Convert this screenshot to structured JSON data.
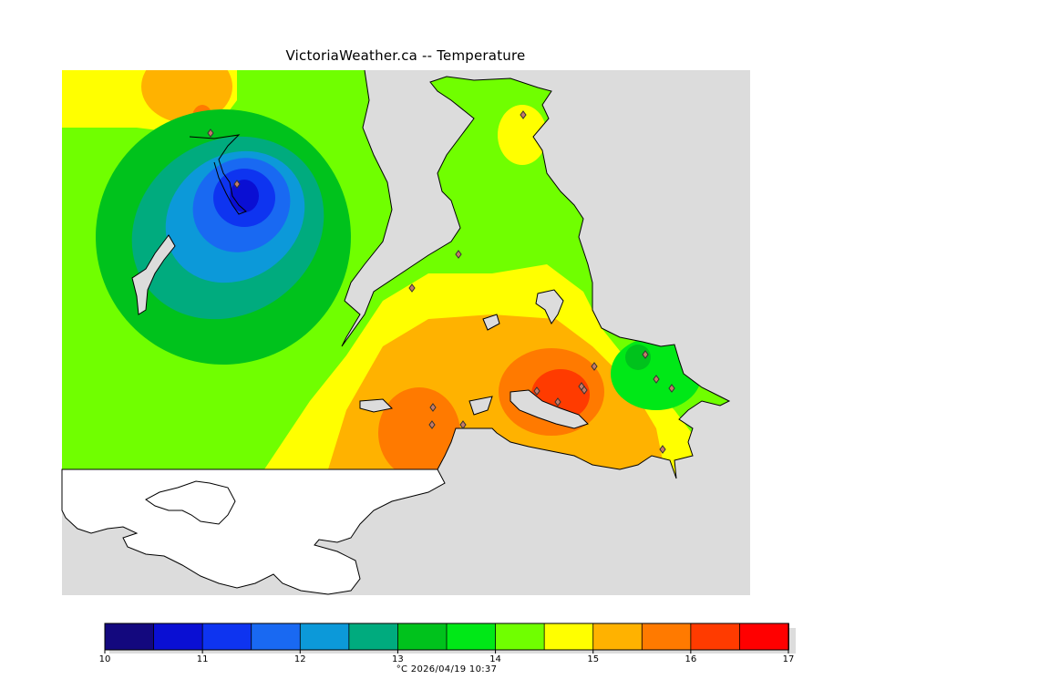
{
  "title": "VictoriaWeather.ca -- Temperature",
  "map": {
    "variable": "Temperature",
    "water_color": "#dcdcdc",
    "no_data_land_color": "#ffffff",
    "coastline_color": "#000000",
    "station_marker": "diamond-icon"
  },
  "legend": {
    "ticks": [
      "10",
      "11",
      "12",
      "13",
      "14",
      "15",
      "16",
      "17"
    ],
    "min": 10,
    "max": 17,
    "step": 0.5,
    "colors": [
      "#13087e",
      "#0a0fd3",
      "#0e34f0",
      "#1969f2",
      "#0c99d9",
      "#00ab7e",
      "#00c21c",
      "#00e817",
      "#70ff00",
      "#ffff00",
      "#ffb200",
      "#ff7a00",
      "#ff3b00",
      "#ff0000"
    ],
    "caption": "°C  2026/04/19 10:37"
  }
}
